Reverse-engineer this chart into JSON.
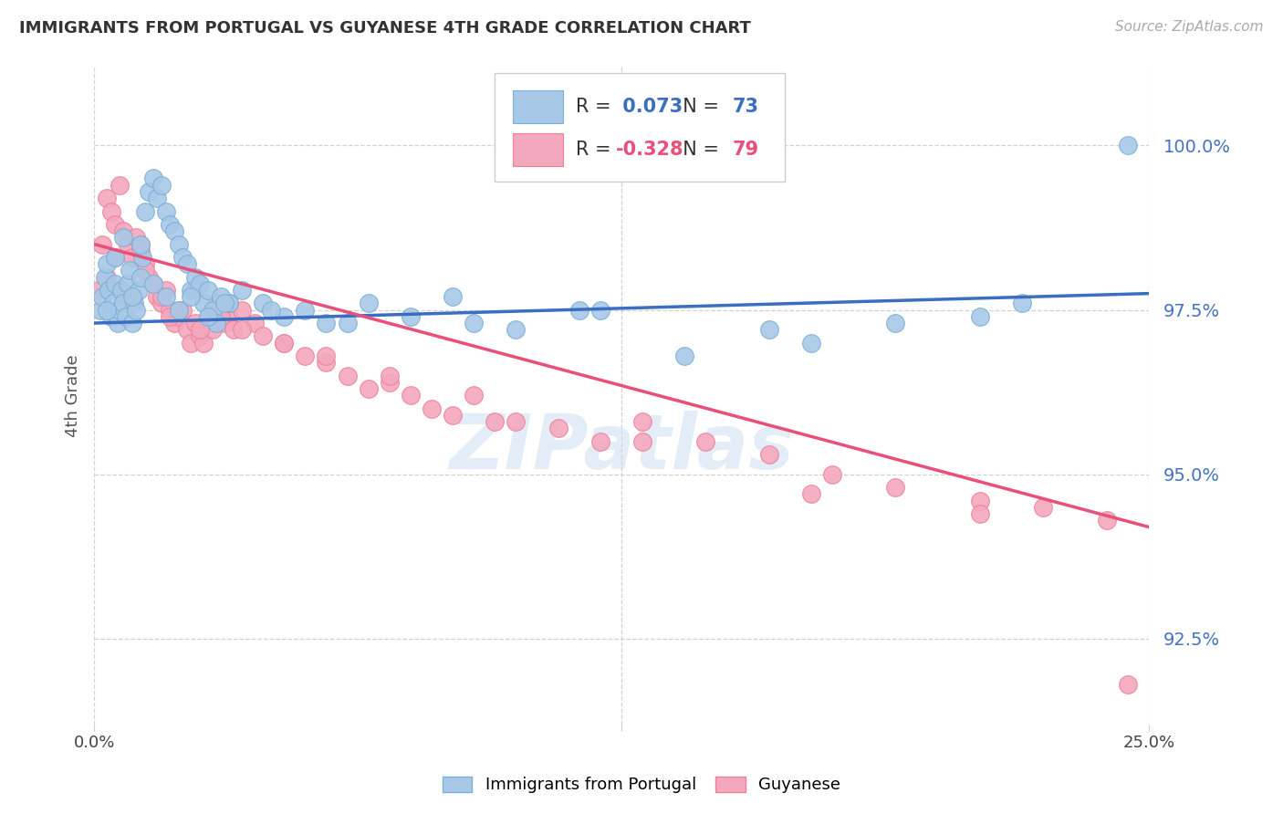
{
  "title": "IMMIGRANTS FROM PORTUGAL VS GUYANESE 4TH GRADE CORRELATION CHART",
  "source": "Source: ZipAtlas.com",
  "ylabel": "4th Grade",
  "ytick_values": [
    92.5,
    95.0,
    97.5,
    100.0
  ],
  "xlim": [
    0.0,
    25.0
  ],
  "ylim": [
    91.2,
    101.2
  ],
  "blue_label": "Immigrants from Portugal",
  "pink_label": "Guyanese",
  "blue_R": "0.073",
  "blue_N": "73",
  "pink_R": "-0.328",
  "pink_N": "79",
  "blue_color": "#A8C8E8",
  "pink_color": "#F4A8BE",
  "blue_edge_color": "#7BAFD4",
  "pink_edge_color": "#F08098",
  "blue_line_color": "#3A6EC0",
  "pink_line_color": "#E8507A",
  "ytick_color": "#4472C4",
  "watermark": "ZIPatlas",
  "blue_line_y0": 97.3,
  "blue_line_y1": 97.75,
  "pink_line_y0": 98.5,
  "pink_line_y1": 94.2,
  "blue_scatter_x": [
    0.15,
    0.2,
    0.25,
    0.3,
    0.35,
    0.4,
    0.45,
    0.5,
    0.55,
    0.6,
    0.65,
    0.7,
    0.75,
    0.8,
    0.85,
    0.9,
    0.95,
    1.0,
    1.05,
    1.1,
    1.15,
    1.2,
    1.3,
    1.4,
    1.5,
    1.6,
    1.7,
    1.8,
    1.9,
    2.0,
    2.1,
    2.2,
    2.3,
    2.4,
    2.5,
    2.6,
    2.7,
    2.8,
    2.9,
    3.0,
    3.2,
    3.5,
    4.0,
    4.5,
    5.0,
    5.5,
    6.5,
    7.5,
    9.0,
    10.0,
    12.0,
    14.0,
    17.0,
    21.0,
    24.5,
    0.3,
    0.5,
    0.7,
    0.9,
    1.1,
    1.4,
    1.7,
    2.0,
    2.3,
    2.7,
    3.1,
    4.2,
    6.0,
    8.5,
    11.5,
    16.0,
    19.0,
    22.0
  ],
  "blue_scatter_y": [
    97.5,
    97.7,
    98.0,
    98.2,
    97.8,
    97.4,
    97.6,
    97.9,
    97.3,
    97.5,
    97.8,
    97.6,
    97.4,
    97.9,
    98.1,
    97.3,
    97.6,
    97.5,
    97.8,
    98.0,
    98.3,
    99.0,
    99.3,
    99.5,
    99.2,
    99.4,
    99.0,
    98.8,
    98.7,
    98.5,
    98.3,
    98.2,
    97.8,
    98.0,
    97.9,
    97.6,
    97.8,
    97.5,
    97.3,
    97.7,
    97.6,
    97.8,
    97.6,
    97.4,
    97.5,
    97.3,
    97.6,
    97.4,
    97.3,
    97.2,
    97.5,
    96.8,
    97.0,
    97.4,
    100.0,
    97.5,
    98.3,
    98.6,
    97.7,
    98.5,
    97.9,
    97.7,
    97.5,
    97.7,
    97.4,
    97.6,
    97.5,
    97.3,
    97.7,
    97.5,
    97.2,
    97.3,
    97.6
  ],
  "pink_scatter_x": [
    0.1,
    0.2,
    0.3,
    0.4,
    0.5,
    0.6,
    0.7,
    0.8,
    0.9,
    1.0,
    1.1,
    1.2,
    1.3,
    1.4,
    1.5,
    1.6,
    1.7,
    1.8,
    1.9,
    2.0,
    2.1,
    2.2,
    2.3,
    2.4,
    2.5,
    2.6,
    2.7,
    2.8,
    2.9,
    3.0,
    3.1,
    3.2,
    3.3,
    3.5,
    3.8,
    4.0,
    4.5,
    5.0,
    5.5,
    6.0,
    6.5,
    7.0,
    7.5,
    8.0,
    8.5,
    9.0,
    10.0,
    11.0,
    12.0,
    13.0,
    14.5,
    16.0,
    17.5,
    19.0,
    21.0,
    22.5,
    24.0,
    0.3,
    0.6,
    0.9,
    1.2,
    1.6,
    2.0,
    2.5,
    3.0,
    3.5,
    4.5,
    5.5,
    7.0,
    9.5,
    13.0,
    17.0,
    21.0,
    24.5,
    0.5,
    1.1,
    1.8,
    2.4,
    3.2
  ],
  "pink_scatter_y": [
    97.8,
    98.5,
    99.2,
    99.0,
    98.8,
    99.4,
    98.7,
    98.5,
    98.3,
    98.6,
    98.4,
    98.2,
    98.0,
    97.9,
    97.7,
    97.6,
    97.8,
    97.5,
    97.3,
    97.4,
    97.5,
    97.2,
    97.0,
    97.3,
    97.1,
    97.0,
    97.4,
    97.2,
    97.6,
    97.5,
    97.3,
    97.4,
    97.2,
    97.5,
    97.3,
    97.1,
    97.0,
    96.8,
    96.7,
    96.5,
    96.3,
    96.4,
    96.2,
    96.0,
    95.9,
    96.2,
    95.8,
    95.7,
    95.5,
    95.8,
    95.5,
    95.3,
    95.0,
    94.8,
    94.6,
    94.5,
    94.3,
    98.0,
    97.8,
    97.6,
    98.1,
    97.7,
    97.5,
    97.2,
    97.4,
    97.2,
    97.0,
    96.8,
    96.5,
    95.8,
    95.5,
    94.7,
    94.4,
    91.8,
    98.3,
    98.5,
    97.4,
    97.8,
    97.6
  ]
}
